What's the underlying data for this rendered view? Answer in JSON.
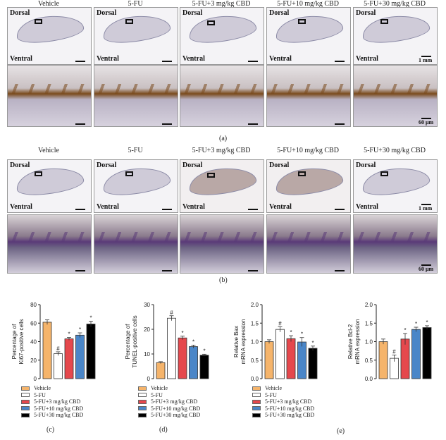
{
  "headers": [
    "Vehicle",
    "5-FU",
    "5-FU+3 mg/kg CBD",
    "5-FU+10 mg/kg CBD",
    "5-FU+30 mg/kg CBD"
  ],
  "labels": {
    "dorsal": "Dorsal",
    "ventral": "Ventral",
    "scale_low": "1 mm",
    "scale_high": "60 μm"
  },
  "captions": {
    "a": "(a)",
    "b": "(b)",
    "c": "(c)",
    "d": "(d)",
    "e": "(e)"
  },
  "legend": [
    "Vehicle",
    "5-FU",
    "5-FU+3 mg/kg CBD",
    "5-FU+10 mg/kg CBD",
    "5-FU+30 mg/kg CBD"
  ],
  "colors": {
    "vehicle": "#f5b46b",
    "fu": "#ffffff",
    "cbd3": "#e5484d",
    "cbd10": "#4a86c8",
    "cbd30": "#000000",
    "stainA": "#7a4a1c",
    "stainB": "#5a3a78"
  },
  "chart_data": [
    {
      "type": "bar",
      "ylabel": [
        "Percentage of",
        "Ki67-positive cells"
      ],
      "ylim": [
        0,
        80
      ],
      "ticks": [
        0,
        20,
        40,
        60,
        80
      ],
      "categories": [
        "Vehicle",
        "5-FU",
        "5-FU+3 mg/kg CBD",
        "5-FU+10 mg/kg CBD",
        "5-FU+30 mg/kg CBD"
      ],
      "values": [
        61,
        27,
        43,
        47,
        59
      ],
      "errors": [
        2.5,
        2,
        1.5,
        2.5,
        3
      ],
      "marks": [
        "",
        "#",
        "*",
        "*",
        "*"
      ]
    },
    {
      "type": "bar",
      "ylabel": [
        "Percentage of",
        "TUNEL-positive cells"
      ],
      "ylim": [
        0,
        30
      ],
      "ticks": [
        0,
        10,
        20,
        30
      ],
      "categories": [
        "Vehicle",
        "5-FU",
        "5-FU+3 mg/kg CBD",
        "5-FU+10 mg/kg CBD",
        "5-FU+30 mg/kg CBD"
      ],
      "values": [
        6.5,
        24.5,
        16.5,
        13,
        9.5
      ],
      "errors": [
        0.4,
        1,
        0.7,
        0.6,
        0.4
      ],
      "marks": [
        "",
        "#",
        "*",
        "*",
        "*"
      ]
    },
    {
      "type": "bar",
      "ylabel": [
        "Relative Bax",
        "mRNA expression"
      ],
      "ylim": [
        0,
        2.0
      ],
      "ticks": [
        "0.0",
        "0.5",
        "1.0",
        "1.5",
        "2.0"
      ],
      "categories": [
        "Vehicle",
        "5-FU",
        "5-FU+3 mg/kg CBD",
        "5-FU+10 mg/kg CBD",
        "5-FU+30 mg/kg CBD"
      ],
      "values": [
        1.0,
        1.33,
        1.08,
        0.99,
        0.82
      ],
      "errors": [
        0.05,
        0.07,
        0.08,
        0.12,
        0.06
      ],
      "marks": [
        "",
        "#",
        "*",
        "*",
        "*"
      ]
    },
    {
      "type": "bar",
      "ylabel": [
        "Relative Bcl-2",
        "mRNA expression"
      ],
      "ylim": [
        0,
        2.0
      ],
      "ticks": [
        "0.0",
        "0.5",
        "1.0",
        "1.5",
        "2.0"
      ],
      "categories": [
        "Vehicle",
        "5-FU",
        "5-FU+3 mg/kg CBD",
        "5-FU+10 mg/kg CBD",
        "5-FU+30 mg/kg CBD"
      ],
      "values": [
        1.0,
        0.55,
        1.07,
        1.33,
        1.38
      ],
      "errors": [
        0.07,
        0.09,
        0.15,
        0.06,
        0.05
      ],
      "marks": [
        "",
        "#",
        "*",
        "*",
        "*"
      ]
    }
  ]
}
